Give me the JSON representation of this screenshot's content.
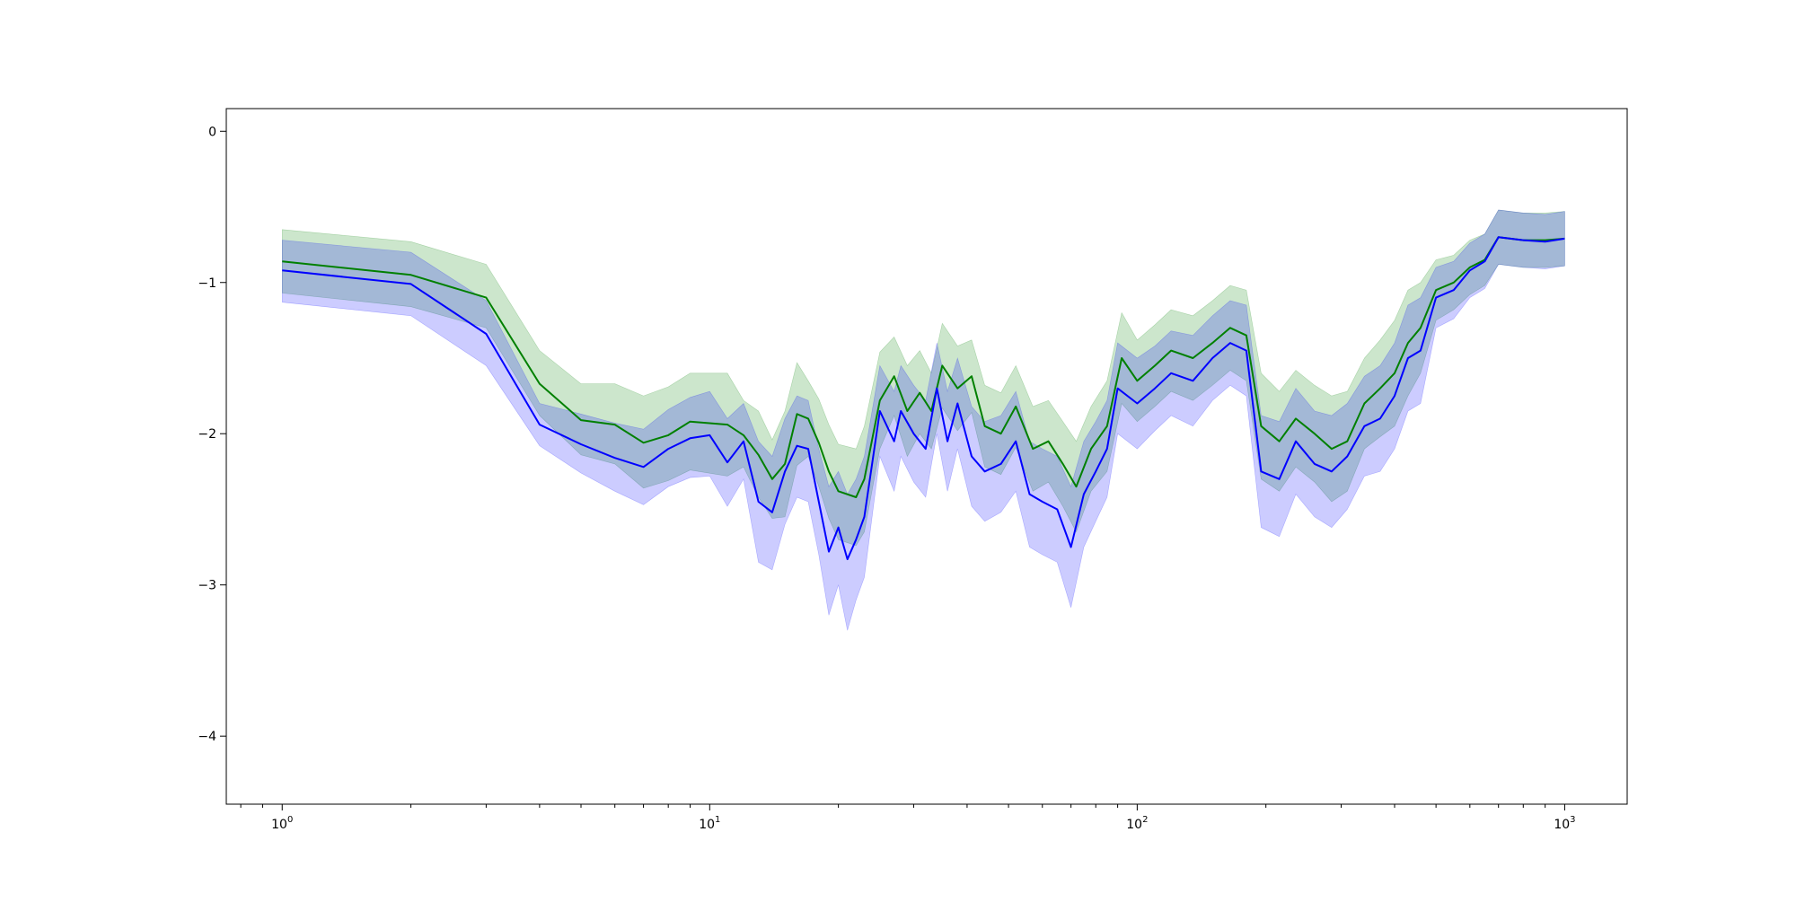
{
  "chart_data": {
    "type": "line",
    "title": "",
    "xlabel": "",
    "ylabel": "",
    "xscale": "log",
    "xlim": [
      0.74,
      1400
    ],
    "ylim": [
      -4.45,
      0.15
    ],
    "x_ticks": [
      1,
      10,
      100,
      1000
    ],
    "x_tick_labels": [
      {
        "base": "10",
        "exp": "0"
      },
      {
        "base": "10",
        "exp": "1"
      },
      {
        "base": "10",
        "exp": "2"
      },
      {
        "base": "10",
        "exp": "3"
      }
    ],
    "y_ticks": [
      0,
      -1,
      -2,
      -3,
      -4
    ],
    "y_tick_labels": [
      "0",
      "−1",
      "−2",
      "−3",
      "−4"
    ],
    "grid": false,
    "legend": "none",
    "series": [
      {
        "color": "#008000",
        "band_color": "#008000",
        "band_opacity": 0.2,
        "points": [
          [
            1,
            -0.86,
            -0.65,
            -1.07
          ],
          [
            2,
            -0.95,
            -0.73,
            -1.16
          ],
          [
            3,
            -1.1,
            -0.88,
            -1.3
          ],
          [
            4,
            -1.67,
            -1.45,
            -1.88
          ],
          [
            5,
            -1.91,
            -1.67,
            -2.14
          ],
          [
            6,
            -1.94,
            -1.67,
            -2.2
          ],
          [
            7,
            -2.06,
            -1.75,
            -2.36
          ],
          [
            8,
            -2.01,
            -1.69,
            -2.31
          ],
          [
            9,
            -1.92,
            -1.6,
            -2.24
          ],
          [
            11,
            -1.94,
            -1.6,
            -2.28
          ],
          [
            12,
            -2.01,
            -1.78,
            -2.22
          ],
          [
            13,
            -2.14,
            -1.85,
            -2.42
          ],
          [
            14,
            -2.3,
            -2.04,
            -2.56
          ],
          [
            15,
            -2.2,
            -1.85,
            -2.55
          ],
          [
            16,
            -1.87,
            -1.53,
            -2.21
          ],
          [
            17,
            -1.9,
            -1.65,
            -2.15
          ],
          [
            18,
            -2.06,
            -1.77,
            -2.35
          ],
          [
            19,
            -2.25,
            -1.94,
            -2.56
          ],
          [
            20,
            -2.38,
            -2.07,
            -2.7
          ],
          [
            22,
            -2.42,
            -2.1,
            -2.74
          ],
          [
            23,
            -2.3,
            -1.95,
            -2.65
          ],
          [
            25,
            -1.78,
            -1.46,
            -2.1
          ],
          [
            27,
            -1.62,
            -1.36,
            -1.88
          ],
          [
            29,
            -1.85,
            -1.55,
            -2.15
          ],
          [
            31,
            -1.73,
            -1.45,
            -2.0
          ],
          [
            33,
            -1.85,
            -1.6,
            -2.1
          ],
          [
            35,
            -1.55,
            -1.27,
            -1.83
          ],
          [
            38,
            -1.7,
            -1.42,
            -1.98
          ],
          [
            41,
            -1.62,
            -1.38,
            -1.86
          ],
          [
            44,
            -1.95,
            -1.68,
            -2.22
          ],
          [
            48,
            -2.0,
            -1.73,
            -2.27
          ],
          [
            52,
            -1.82,
            -1.55,
            -2.09
          ],
          [
            57,
            -2.1,
            -1.82,
            -2.38
          ],
          [
            62,
            -2.05,
            -1.78,
            -2.32
          ],
          [
            67,
            -2.2,
            -1.92,
            -2.48
          ],
          [
            72,
            -2.35,
            -2.05,
            -2.65
          ],
          [
            78,
            -2.1,
            -1.82,
            -2.38
          ],
          [
            85,
            -1.95,
            -1.65,
            -2.25
          ],
          [
            92,
            -1.5,
            -1.2,
            -1.8
          ],
          [
            100,
            -1.65,
            -1.38,
            -1.92
          ],
          [
            110,
            -1.55,
            -1.28,
            -1.82
          ],
          [
            120,
            -1.45,
            -1.18,
            -1.72
          ],
          [
            135,
            -1.5,
            -1.22,
            -1.78
          ],
          [
            150,
            -1.4,
            -1.12,
            -1.68
          ],
          [
            165,
            -1.3,
            -1.02,
            -1.58
          ],
          [
            180,
            -1.35,
            -1.05,
            -1.65
          ],
          [
            195,
            -1.95,
            -1.6,
            -2.3
          ],
          [
            215,
            -2.05,
            -1.72,
            -2.38
          ],
          [
            235,
            -1.9,
            -1.58,
            -2.22
          ],
          [
            260,
            -2.0,
            -1.68,
            -2.32
          ],
          [
            285,
            -2.1,
            -1.75,
            -2.45
          ],
          [
            310,
            -2.05,
            -1.72,
            -2.38
          ],
          [
            340,
            -1.8,
            -1.5,
            -2.1
          ],
          [
            370,
            -1.7,
            -1.38,
            -2.02
          ],
          [
            400,
            -1.6,
            -1.25,
            -1.95
          ],
          [
            430,
            -1.4,
            -1.05,
            -1.75
          ],
          [
            460,
            -1.3,
            -1.0,
            -1.6
          ],
          [
            500,
            -1.05,
            -0.85,
            -1.25
          ],
          [
            550,
            -1.0,
            -0.82,
            -1.18
          ],
          [
            600,
            -0.9,
            -0.72,
            -1.08
          ],
          [
            650,
            -0.85,
            -0.68,
            -1.02
          ],
          [
            700,
            -0.7,
            -0.52,
            -0.88
          ],
          [
            800,
            -0.72,
            -0.54,
            -0.9
          ],
          [
            900,
            -0.72,
            -0.54,
            -0.9
          ],
          [
            1000,
            -0.71,
            -0.53,
            -0.89
          ]
        ]
      },
      {
        "color": "#0000ff",
        "band_color": "#0000ff",
        "band_opacity": 0.2,
        "points": [
          [
            1,
            -0.92,
            -0.72,
            -1.13
          ],
          [
            2,
            -1.01,
            -0.8,
            -1.22
          ],
          [
            3,
            -1.34,
            -1.12,
            -1.55
          ],
          [
            4,
            -1.94,
            -1.8,
            -2.08
          ],
          [
            5,
            -2.07,
            -1.87,
            -2.26
          ],
          [
            6,
            -2.16,
            -1.93,
            -2.38
          ],
          [
            7,
            -2.22,
            -1.97,
            -2.47
          ],
          [
            8,
            -2.1,
            -1.84,
            -2.35
          ],
          [
            9,
            -2.03,
            -1.76,
            -2.29
          ],
          [
            10,
            -2.01,
            -1.72,
            -2.28
          ],
          [
            11,
            -2.19,
            -1.9,
            -2.48
          ],
          [
            12,
            -2.05,
            -1.8,
            -2.3
          ],
          [
            13,
            -2.45,
            -2.05,
            -2.85
          ],
          [
            14,
            -2.52,
            -2.15,
            -2.9
          ],
          [
            15,
            -2.25,
            -1.9,
            -2.6
          ],
          [
            16,
            -2.08,
            -1.75,
            -2.42
          ],
          [
            17,
            -2.1,
            -1.78,
            -2.45
          ],
          [
            18,
            -2.45,
            -2.1,
            -2.8
          ],
          [
            19,
            -2.78,
            -2.35,
            -3.2
          ],
          [
            20,
            -2.62,
            -2.25,
            -3.0
          ],
          [
            21,
            -2.83,
            -2.4,
            -3.3
          ],
          [
            22,
            -2.7,
            -2.3,
            -3.1
          ],
          [
            23,
            -2.55,
            -2.15,
            -2.95
          ],
          [
            25,
            -1.85,
            -1.55,
            -2.15
          ],
          [
            27,
            -2.05,
            -1.72,
            -2.38
          ],
          [
            28,
            -1.85,
            -1.55,
            -2.15
          ],
          [
            30,
            -2.0,
            -1.68,
            -2.32
          ],
          [
            32,
            -2.1,
            -1.78,
            -2.42
          ],
          [
            34,
            -1.7,
            -1.4,
            -2.0
          ],
          [
            36,
            -2.05,
            -1.72,
            -2.38
          ],
          [
            38,
            -1.8,
            -1.5,
            -2.1
          ],
          [
            41,
            -2.15,
            -1.82,
            -2.48
          ],
          [
            44,
            -2.25,
            -1.92,
            -2.58
          ],
          [
            48,
            -2.2,
            -1.88,
            -2.52
          ],
          [
            52,
            -2.05,
            -1.72,
            -2.38
          ],
          [
            56,
            -2.4,
            -2.05,
            -2.75
          ],
          [
            60,
            -2.45,
            -2.1,
            -2.8
          ],
          [
            65,
            -2.5,
            -2.15,
            -2.85
          ],
          [
            70,
            -2.75,
            -2.35,
            -3.15
          ],
          [
            75,
            -2.4,
            -2.05,
            -2.75
          ],
          [
            80,
            -2.25,
            -1.92,
            -2.58
          ],
          [
            85,
            -2.1,
            -1.78,
            -2.42
          ],
          [
            90,
            -1.7,
            -1.4,
            -2.0
          ],
          [
            100,
            -1.8,
            -1.5,
            -2.1
          ],
          [
            110,
            -1.7,
            -1.42,
            -1.98
          ],
          [
            120,
            -1.6,
            -1.32,
            -1.88
          ],
          [
            135,
            -1.65,
            -1.35,
            -1.95
          ],
          [
            150,
            -1.5,
            -1.22,
            -1.78
          ],
          [
            165,
            -1.4,
            -1.12,
            -1.68
          ],
          [
            180,
            -1.45,
            -1.15,
            -1.75
          ],
          [
            195,
            -2.25,
            -1.88,
            -2.62
          ],
          [
            215,
            -2.3,
            -1.92,
            -2.68
          ],
          [
            235,
            -2.05,
            -1.7,
            -2.4
          ],
          [
            260,
            -2.2,
            -1.85,
            -2.55
          ],
          [
            285,
            -2.25,
            -1.88,
            -2.62
          ],
          [
            310,
            -2.15,
            -1.8,
            -2.5
          ],
          [
            340,
            -1.95,
            -1.62,
            -2.28
          ],
          [
            370,
            -1.9,
            -1.55,
            -2.25
          ],
          [
            400,
            -1.75,
            -1.4,
            -2.1
          ],
          [
            430,
            -1.5,
            -1.15,
            -1.85
          ],
          [
            460,
            -1.45,
            -1.1,
            -1.8
          ],
          [
            500,
            -1.1,
            -0.9,
            -1.3
          ],
          [
            550,
            -1.05,
            -0.86,
            -1.24
          ],
          [
            600,
            -0.92,
            -0.74,
            -1.1
          ],
          [
            650,
            -0.86,
            -0.68,
            -1.04
          ],
          [
            700,
            -0.7,
            -0.52,
            -0.88
          ],
          [
            800,
            -0.72,
            -0.54,
            -0.9
          ],
          [
            900,
            -0.73,
            -0.55,
            -0.91
          ],
          [
            1000,
            -0.71,
            -0.53,
            -0.89
          ]
        ]
      }
    ]
  }
}
